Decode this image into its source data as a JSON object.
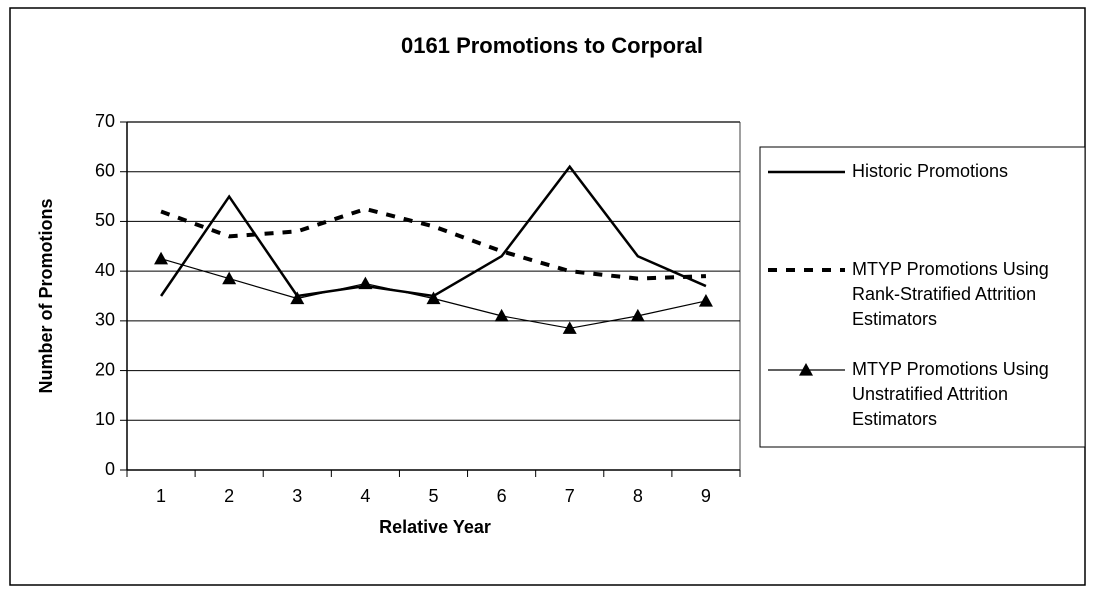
{
  "chart_data": {
    "type": "line",
    "title": "0161 Promotions to Corporal",
    "x_label": "Relative Year",
    "y_label": "Number of Promotions",
    "categories": [
      "1",
      "2",
      "3",
      "4",
      "5",
      "6",
      "7",
      "8",
      "9"
    ],
    "ylim": [
      0,
      70
    ],
    "yticks": [
      0,
      10,
      20,
      30,
      40,
      50,
      60,
      70
    ],
    "grid": true,
    "legend": "right",
    "series": [
      {
        "name": "Historic Promotions",
        "color": "#000000",
        "values": [
          35,
          55,
          35,
          37,
          35,
          43,
          61,
          43,
          37
        ]
      },
      {
        "name": "MTYP Promotions Using Rank-Stratified Attrition Estimators",
        "color": "#000000",
        "dashed": true,
        "values": [
          52,
          47,
          48,
          52.5,
          49,
          44,
          40,
          38.5,
          39
        ]
      },
      {
        "name": "MTYP Promotions Using Unstratified Attrition Estimators",
        "color": "#000000",
        "marker": "triangle",
        "values": [
          42.5,
          38.5,
          34.5,
          37.5,
          34.5,
          31,
          28.5,
          31,
          34
        ]
      }
    ]
  }
}
